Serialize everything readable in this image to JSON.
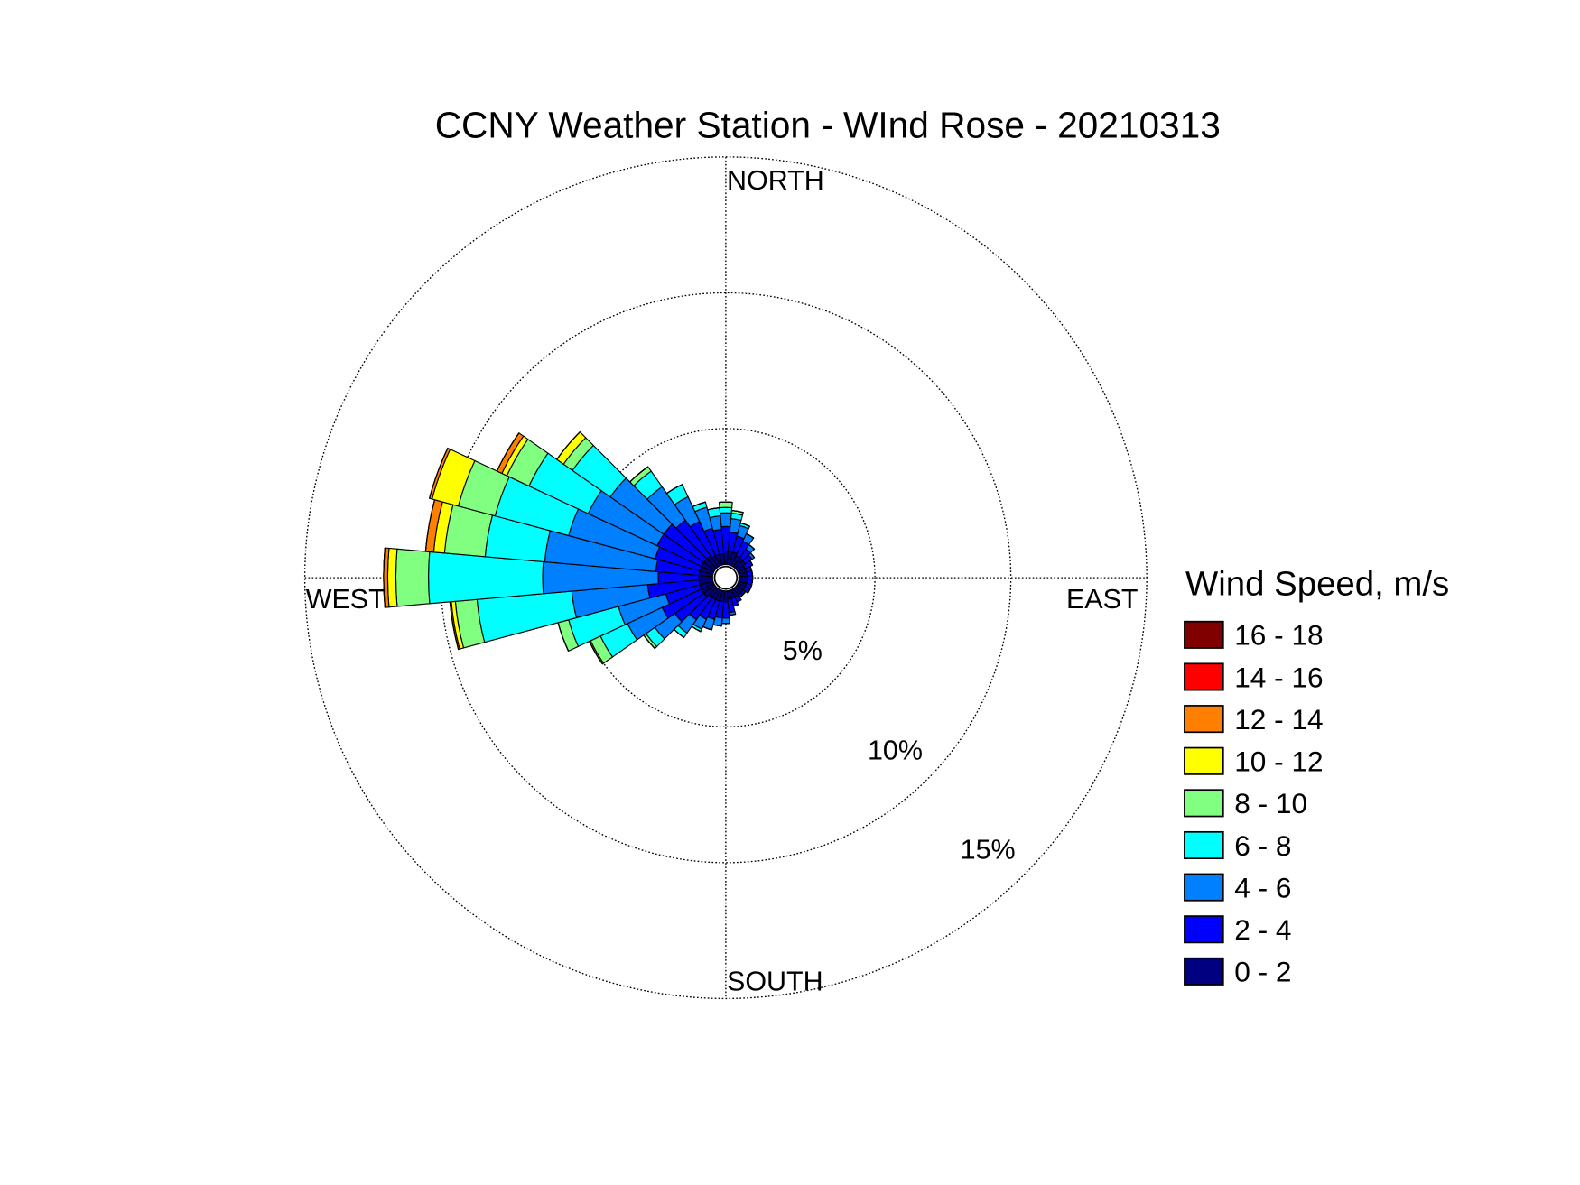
{
  "chart_data": {
    "type": "windrose",
    "title": "CCNY Weather Station - WInd Rose - 20210313",
    "direction_labels": {
      "north": "NORTH",
      "east": "EAST",
      "south": "SOUTH",
      "west": "WEST"
    },
    "legend_title": "Wind Speed, m/s",
    "directions": [
      0,
      10,
      20,
      30,
      40,
      50,
      60,
      70,
      80,
      90,
      100,
      110,
      120,
      130,
      140,
      150,
      160,
      170,
      180,
      190,
      200,
      210,
      220,
      230,
      240,
      250,
      260,
      270,
      280,
      290,
      300,
      310,
      320,
      330,
      340,
      350
    ],
    "rlim": [
      0,
      15
    ],
    "rticks": [
      {
        "value": 5,
        "label": "5%"
      },
      {
        "value": 10,
        "label": "10%"
      },
      {
        "value": 15,
        "label": "15%"
      }
    ],
    "grid": true,
    "series": [
      {
        "name": "0 - 2",
        "color": "#000080",
        "values": [
          0.5,
          0.5,
          0.5,
          0.4,
          0.4,
          0.4,
          0.3,
          0.3,
          0.3,
          0.3,
          0.3,
          0.3,
          0.3,
          0.3,
          0.3,
          0.3,
          0.3,
          0.3,
          0.4,
          0.4,
          0.4,
          0.4,
          0.4,
          0.5,
          0.5,
          0.5,
          0.5,
          0.5,
          0.5,
          0.5,
          0.5,
          0.5,
          0.5,
          0.4,
          0.4,
          0.4
        ]
      },
      {
        "name": "2 - 4",
        "color": "#0000ff",
        "values": [
          0.9,
          0.7,
          0.6,
          0.6,
          0.4,
          0.3,
          0.3,
          0.2,
          0.2,
          0.2,
          0.2,
          0.2,
          0.2,
          0.1,
          0.1,
          0.2,
          0.3,
          0.5,
          0.6,
          0.6,
          0.7,
          0.8,
          1.0,
          1.3,
          1.6,
          1.3,
          1.9,
          1.5,
          1.6,
          1.7,
          1.8,
          1.8,
          1.6,
          1.4,
          1.0,
          0.9
        ]
      },
      {
        "name": "4 - 6",
        "color": "#0080ff",
        "values": [
          0.5,
          0.5,
          0.4,
          0.3,
          0.2,
          0.1,
          0,
          0,
          0,
          0,
          0,
          0,
          0,
          0,
          0,
          0,
          0,
          0.1,
          0.2,
          0.3,
          0.4,
          0.4,
          0.6,
          0.9,
          1.4,
          1.8,
          2.8,
          4.25,
          4.1,
          3.3,
          2.8,
          2.4,
          1.5,
          1.0,
          0.8,
          0.5
        ]
      },
      {
        "name": "6 - 8",
        "color": "#00ffff",
        "values": [
          0.2,
          0.2,
          0.1,
          0,
          0,
          0,
          0,
          0,
          0,
          0,
          0,
          0,
          0,
          0,
          0,
          0,
          0,
          0,
          0,
          0,
          0,
          0.1,
          0.2,
          0.4,
          1.1,
          1.9,
          3.5,
          4.2,
          2.2,
          2.8,
          2.4,
          1.7,
          0.7,
          0.5,
          0.2,
          0.3
        ]
      },
      {
        "name": "8 - 10",
        "color": "#80ff80",
        "values": [
          0.2,
          0.1,
          0,
          0,
          0,
          0,
          0,
          0,
          0,
          0,
          0,
          0,
          0,
          0,
          0,
          0,
          0,
          0,
          0,
          0,
          0,
          0,
          0,
          0.1,
          0.4,
          0.4,
          0.8,
          1.2,
          1.5,
          1.4,
          0.9,
          0.4,
          0.2,
          0,
          0,
          0
        ]
      },
      {
        "name": "10 - 12",
        "color": "#ffff00",
        "values": [
          0,
          0,
          0,
          0,
          0,
          0,
          0,
          0,
          0,
          0,
          0,
          0,
          0,
          0,
          0,
          0,
          0,
          0,
          0,
          0,
          0,
          0,
          0,
          0,
          0.05,
          0,
          0.15,
          0.3,
          0.4,
          1.0,
          0.2,
          0.3,
          0,
          0,
          0,
          0
        ]
      },
      {
        "name": "12 - 14",
        "color": "#ff8000",
        "values": [
          0,
          0,
          0,
          0,
          0,
          0,
          0,
          0,
          0,
          0,
          0,
          0,
          0,
          0,
          0,
          0,
          0,
          0,
          0,
          0,
          0,
          0,
          0,
          0,
          0,
          0,
          0.05,
          0.15,
          0.3,
          0.1,
          0.2,
          0,
          0,
          0,
          0,
          0
        ]
      },
      {
        "name": "14 - 16",
        "color": "#ff0000",
        "values": [
          0,
          0,
          0,
          0,
          0,
          0,
          0,
          0,
          0,
          0,
          0,
          0,
          0,
          0,
          0,
          0,
          0,
          0,
          0,
          0,
          0,
          0,
          0,
          0,
          0,
          0,
          0,
          0,
          0,
          0,
          0,
          0,
          0,
          0,
          0,
          0
        ]
      },
      {
        "name": "16 - 18",
        "color": "#800000",
        "values": [
          0,
          0,
          0,
          0,
          0,
          0,
          0,
          0,
          0,
          0,
          0,
          0,
          0,
          0,
          0,
          0,
          0,
          0,
          0,
          0,
          0,
          0,
          0,
          0,
          0,
          0,
          0,
          0,
          0,
          0,
          0,
          0,
          0,
          0,
          0,
          0
        ]
      }
    ]
  }
}
